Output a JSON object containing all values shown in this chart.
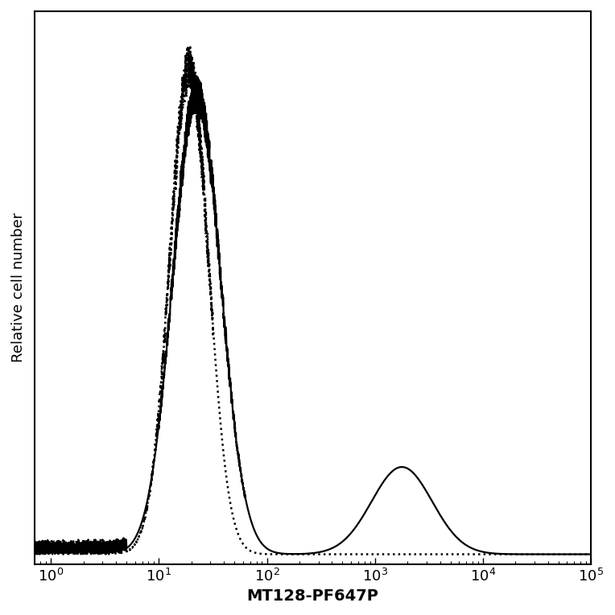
{
  "xlabel": "MT128-PF647P",
  "ylabel": "Relative cell number",
  "background_color": "#ffffff",
  "line_color": "#000000",
  "xlabel_fontsize": 14,
  "ylabel_fontsize": 13,
  "tick_labelsize": 13,
  "linewidth_solid": 1.6,
  "linewidth_dotted": 1.8
}
